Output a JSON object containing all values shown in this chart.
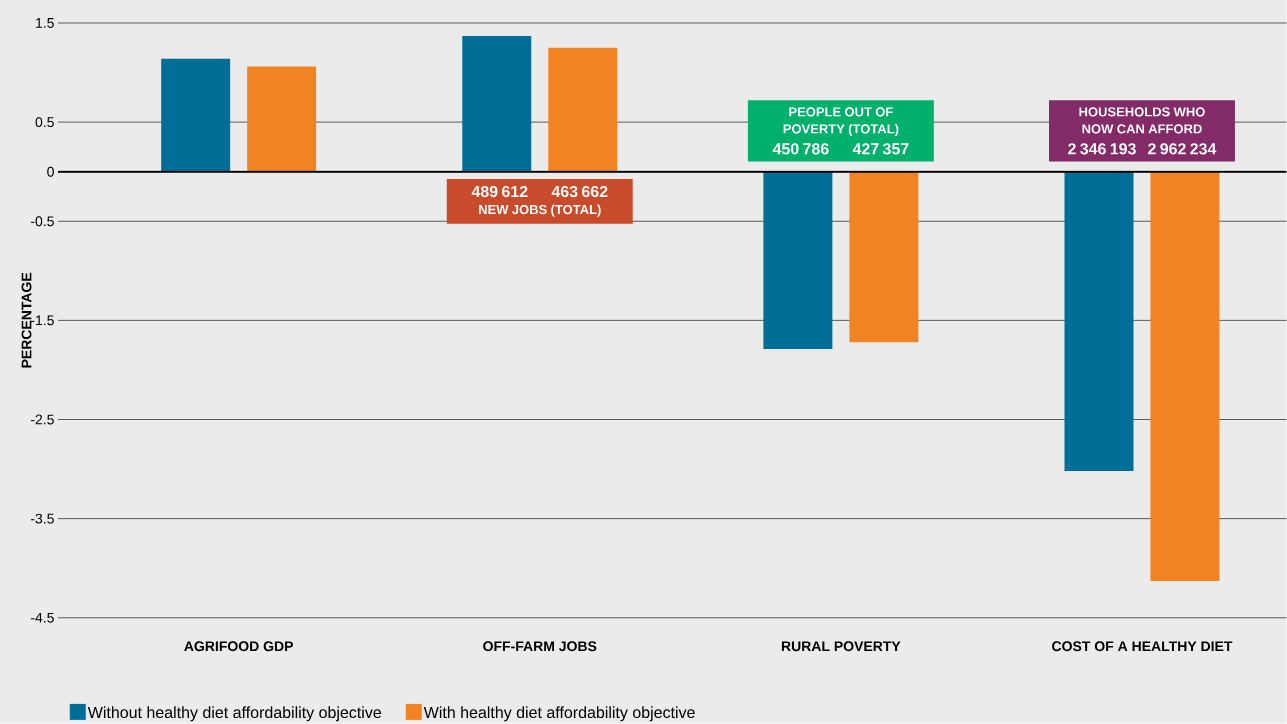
{
  "chart_data": {
    "type": "bar",
    "ylabel": "PERCENTAGE",
    "categories": [
      "AGRIFOOD GDP",
      "OFF-FARM JOBS",
      "RURAL POVERTY",
      "COST OF A HEALTHY DIET"
    ],
    "series": [
      {
        "name": "Without healthy diet affordability objective",
        "color": "#006e96",
        "values": [
          1.14,
          1.37,
          -1.79,
          -3.02
        ]
      },
      {
        "name": "With healthy diet affordability objective",
        "color": "#f28322",
        "values": [
          1.06,
          1.25,
          -1.72,
          -4.13
        ]
      }
    ],
    "ylim": [
      -4.5,
      1.5
    ],
    "yticks": [
      1.5,
      0.5,
      0,
      -0.5,
      -1.5,
      -2.5,
      -3.5,
      -4.5
    ],
    "grid": "y",
    "legend": "bottom",
    "annotations": [
      "489 612",
      "463 662",
      "NEW JOBS (TOTAL)",
      "450 786",
      "427 357",
      "PEOPLE OUT OF POVERTY (TOTAL)",
      "2 346 193",
      "2 962 234",
      "HOUSEHOLDS WHO NOW CAN AFFORD"
    ]
  }
}
